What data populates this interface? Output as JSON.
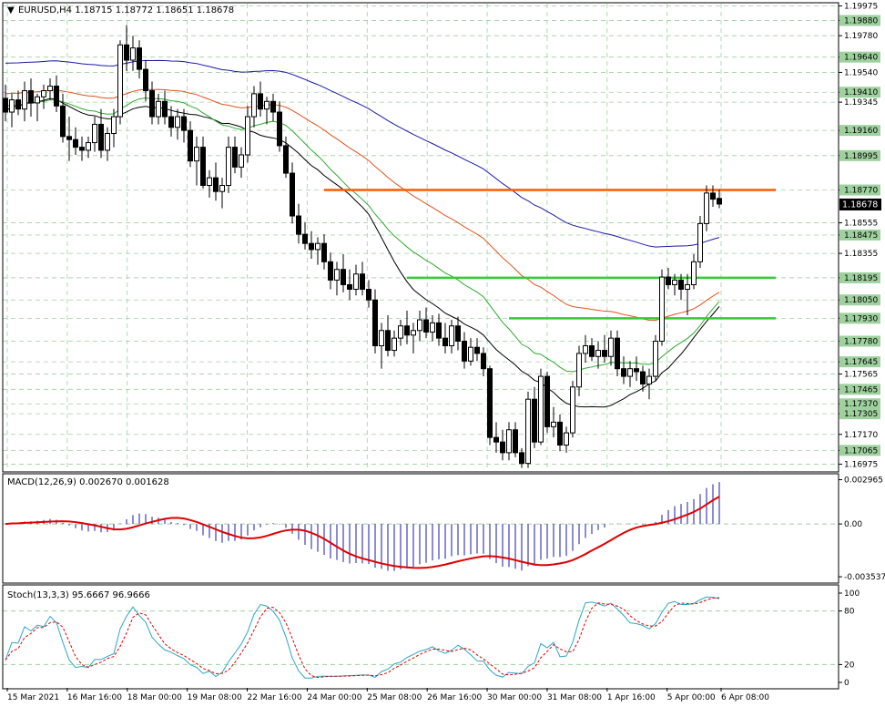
{
  "colors": {
    "background": "#ffffff",
    "grid": "#9fd19f",
    "border": "#000000",
    "text": "#000000",
    "ma_blue": "#1a1aa8",
    "ma_orange": "#e0521c",
    "ma_green": "#2eaa2e",
    "ma_black": "#000000",
    "level_orange": "#ff5a00",
    "level_green": "#33cc33",
    "price_tag_bg": "#000000",
    "price_tag_fg": "#ffffff",
    "macd_hist": "#1a1aa8",
    "macd_signal": "#e00000",
    "stoch_main": "#2aa7c7",
    "stoch_signal": "#e00000"
  },
  "main_panel": {
    "header": "EURUSD,H4  1.18715 1.18772 1.18651 1.18678",
    "current_price": "1.18678",
    "y_range": [
      1.1693,
      1.1999
    ],
    "price_labels": [
      "1.19975",
      "1.19880",
      "1.19780",
      "1.19640",
      "1.19540",
      "1.19410",
      "1.19345",
      "1.19160",
      "1.18995",
      "1.18770",
      "1.18555",
      "1.18475",
      "1.18355",
      "1.18195",
      "1.18050",
      "1.17930",
      "1.17780",
      "1.17645",
      "1.17565",
      "1.17465",
      "1.17370",
      "1.17305",
      "1.17170",
      "1.17065",
      "1.16975"
    ],
    "highlighted_labels": [
      "1.19880",
      "1.19640",
      "1.19410",
      "1.19160",
      "1.18995",
      "1.18770",
      "1.18475",
      "1.18195",
      "1.18050",
      "1.17930",
      "1.17780",
      "1.17645",
      "1.17465",
      "1.17370",
      "1.17305",
      "1.17065"
    ],
    "levels": [
      {
        "price": 1.1877,
        "color": "#ff5a00",
        "from_bar": 50
      },
      {
        "price": 1.18195,
        "color": "#33cc33",
        "from_bar": 63
      },
      {
        "price": 1.1793,
        "color": "#33cc33",
        "from_bar": 79
      }
    ]
  },
  "x_labels": [
    "15 Mar 2021",
    "16 Mar 16:00",
    "18 Mar 00:00",
    "19 Mar 08:00",
    "22 Mar 16:00",
    "24 Mar 00:00",
    "25 Mar 08:00",
    "26 Mar 16:00",
    "30 Mar 00:00",
    "31 Mar 08:00",
    "1 Apr 16:00",
    "5 Apr 00:00",
    "6 Apr 08:00"
  ],
  "macd_panel": {
    "header": "MACD(12,26,9) 0.002670 0.001628",
    "labels": [
      "0.002965",
      "0.00",
      "-0.003537"
    ],
    "y_range": [
      -0.0039,
      0.0033
    ]
  },
  "stoch_panel": {
    "header": "Stoch(13,3,3) 95.6667 96.9666",
    "labels": [
      "100",
      "80",
      "20",
      "0"
    ]
  },
  "chart_data": {
    "type": "candlestick",
    "symbol": "EURUSD",
    "timeframe": "H4",
    "ohlc": [
      [
        1.1937,
        1.1946,
        1.1922,
        1.1928
      ],
      [
        1.1928,
        1.194,
        1.1918,
        1.1936
      ],
      [
        1.1936,
        1.1942,
        1.1926,
        1.193
      ],
      [
        1.193,
        1.1948,
        1.1922,
        1.1942
      ],
      [
        1.1942,
        1.195,
        1.1925,
        1.1934
      ],
      [
        1.1934,
        1.194,
        1.1922,
        1.1938
      ],
      [
        1.1938,
        1.1946,
        1.193,
        1.1942
      ],
      [
        1.1942,
        1.195,
        1.1936,
        1.1945
      ],
      [
        1.1945,
        1.1952,
        1.1928,
        1.1932
      ],
      [
        1.1932,
        1.194,
        1.1908,
        1.1912
      ],
      [
        1.1912,
        1.1925,
        1.1896,
        1.191
      ],
      [
        1.191,
        1.1918,
        1.19,
        1.1905
      ],
      [
        1.1905,
        1.1912,
        1.1896,
        1.1903
      ],
      [
        1.1903,
        1.1912,
        1.1898,
        1.1908
      ],
      [
        1.1908,
        1.1925,
        1.1902,
        1.192
      ],
      [
        1.192,
        1.193,
        1.1898,
        1.1903
      ],
      [
        1.1903,
        1.1918,
        1.1896,
        1.1914
      ],
      [
        1.1914,
        1.193,
        1.1905,
        1.1925
      ],
      [
        1.1925,
        1.1975,
        1.192,
        1.1972
      ],
      [
        1.1972,
        1.1985,
        1.1955,
        1.1962
      ],
      [
        1.1962,
        1.1978,
        1.1955,
        1.197
      ],
      [
        1.197,
        1.1975,
        1.195,
        1.1956
      ],
      [
        1.1956,
        1.1962,
        1.1935,
        1.1942
      ],
      [
        1.1942,
        1.1948,
        1.192,
        1.1925
      ],
      [
        1.1925,
        1.194,
        1.192,
        1.1935
      ],
      [
        1.1935,
        1.1942,
        1.192,
        1.1925
      ],
      [
        1.1925,
        1.1932,
        1.1912,
        1.1918
      ],
      [
        1.1918,
        1.193,
        1.191,
        1.1925
      ],
      [
        1.1925,
        1.193,
        1.1908,
        1.1916
      ],
      [
        1.1916,
        1.1922,
        1.1892,
        1.1896
      ],
      [
        1.1896,
        1.1912,
        1.188,
        1.1905
      ],
      [
        1.1905,
        1.1912,
        1.1878,
        1.188
      ],
      [
        1.188,
        1.189,
        1.1872,
        1.1885
      ],
      [
        1.1885,
        1.1895,
        1.187,
        1.1876
      ],
      [
        1.1876,
        1.1885,
        1.1865,
        1.188
      ],
      [
        1.188,
        1.1912,
        1.1875,
        1.1905
      ],
      [
        1.1905,
        1.1912,
        1.1888,
        1.1892
      ],
      [
        1.1892,
        1.1905,
        1.1885,
        1.19
      ],
      [
        1.19,
        1.1932,
        1.1895,
        1.1925
      ],
      [
        1.1925,
        1.1945,
        1.1918,
        1.194
      ],
      [
        1.194,
        1.1948,
        1.1925,
        1.193
      ],
      [
        1.193,
        1.1938,
        1.192,
        1.1935
      ],
      [
        1.1935,
        1.194,
        1.1922,
        1.1928
      ],
      [
        1.1928,
        1.1935,
        1.1902,
        1.1906
      ],
      [
        1.1906,
        1.1912,
        1.1885,
        1.1888
      ],
      [
        1.1888,
        1.1895,
        1.1855,
        1.186
      ],
      [
        1.186,
        1.1868,
        1.1842,
        1.1848
      ],
      [
        1.1848,
        1.1856,
        1.1838,
        1.1842
      ],
      [
        1.1842,
        1.185,
        1.1832,
        1.1838
      ],
      [
        1.1838,
        1.1846,
        1.1828,
        1.1842
      ],
      [
        1.1842,
        1.1848,
        1.1825,
        1.183
      ],
      [
        1.183,
        1.1836,
        1.1812,
        1.1818
      ],
      [
        1.1818,
        1.183,
        1.1808,
        1.1825
      ],
      [
        1.1825,
        1.1835,
        1.181,
        1.1815
      ],
      [
        1.1815,
        1.1825,
        1.1805,
        1.1812
      ],
      [
        1.1812,
        1.1828,
        1.1808,
        1.1822
      ],
      [
        1.1822,
        1.183,
        1.1808,
        1.1812
      ],
      [
        1.1812,
        1.1818,
        1.18,
        1.1805
      ],
      [
        1.1805,
        1.1812,
        1.177,
        1.1775
      ],
      [
        1.1775,
        1.179,
        1.176,
        1.1785
      ],
      [
        1.1785,
        1.1795,
        1.1768,
        1.1772
      ],
      [
        1.1772,
        1.1785,
        1.1768,
        1.178
      ],
      [
        1.178,
        1.1792,
        1.1775,
        1.1788
      ],
      [
        1.1788,
        1.1798,
        1.1776,
        1.1782
      ],
      [
        1.1782,
        1.179,
        1.177,
        1.1785
      ],
      [
        1.1785,
        1.1798,
        1.1778,
        1.1792
      ],
      [
        1.1792,
        1.18,
        1.178,
        1.1784
      ],
      [
        1.1784,
        1.1795,
        1.1778,
        1.179
      ],
      [
        1.179,
        1.1796,
        1.1775,
        1.178
      ],
      [
        1.178,
        1.179,
        1.177,
        1.1775
      ],
      [
        1.1775,
        1.1792,
        1.177,
        1.1788
      ],
      [
        1.1788,
        1.1794,
        1.1772,
        1.1778
      ],
      [
        1.1778,
        1.1784,
        1.176,
        1.1765
      ],
      [
        1.1765,
        1.178,
        1.1762,
        1.1774
      ],
      [
        1.1774,
        1.178,
        1.1765,
        1.177
      ],
      [
        1.177,
        1.1774,
        1.1755,
        1.176
      ],
      [
        1.176,
        1.1762,
        1.171,
        1.1715
      ],
      [
        1.1715,
        1.1725,
        1.1705,
        1.1712
      ],
      [
        1.1712,
        1.172,
        1.17,
        1.1705
      ],
      [
        1.1705,
        1.1725,
        1.17,
        1.172
      ],
      [
        1.172,
        1.1725,
        1.1702,
        1.1705
      ],
      [
        1.1705,
        1.1708,
        1.1695,
        1.1698
      ],
      [
        1.1698,
        1.1745,
        1.1695,
        1.174
      ],
      [
        1.174,
        1.1748,
        1.1708,
        1.1712
      ],
      [
        1.1712,
        1.176,
        1.171,
        1.1755
      ],
      [
        1.1755,
        1.1758,
        1.1718,
        1.1722
      ],
      [
        1.1722,
        1.1735,
        1.1715,
        1.1725
      ],
      [
        1.1725,
        1.173,
        1.1706,
        1.171
      ],
      [
        1.171,
        1.1722,
        1.1705,
        1.1718
      ],
      [
        1.1718,
        1.1752,
        1.1715,
        1.1748
      ],
      [
        1.1748,
        1.1775,
        1.1742,
        1.177
      ],
      [
        1.177,
        1.1782,
        1.1764,
        1.1775
      ],
      [
        1.1775,
        1.178,
        1.1765,
        1.1768
      ],
      [
        1.1768,
        1.1778,
        1.176,
        1.1772
      ],
      [
        1.1772,
        1.1782,
        1.1764,
        1.1768
      ],
      [
        1.1768,
        1.1785,
        1.1762,
        1.178
      ],
      [
        1.178,
        1.1785,
        1.1755,
        1.176
      ],
      [
        1.176,
        1.1768,
        1.175,
        1.1755
      ],
      [
        1.1755,
        1.1765,
        1.1748,
        1.176
      ],
      [
        1.176,
        1.1768,
        1.1752,
        1.1758
      ],
      [
        1.1758,
        1.1762,
        1.1745,
        1.175
      ],
      [
        1.175,
        1.176,
        1.174,
        1.1755
      ],
      [
        1.1755,
        1.1782,
        1.1752,
        1.1778
      ],
      [
        1.1778,
        1.1825,
        1.1775,
        1.182
      ],
      [
        1.182,
        1.1826,
        1.1812,
        1.1815
      ],
      [
        1.1815,
        1.1822,
        1.1808,
        1.1818
      ],
      [
        1.1818,
        1.1822,
        1.1805,
        1.1812
      ],
      [
        1.1812,
        1.1822,
        1.1795,
        1.1815
      ],
      [
        1.1815,
        1.1835,
        1.1812,
        1.183
      ],
      [
        1.183,
        1.186,
        1.1826,
        1.1855
      ],
      [
        1.1855,
        1.188,
        1.185,
        1.1875
      ],
      [
        1.1875,
        1.188,
        1.1866,
        1.1871
      ],
      [
        1.18715,
        1.18772,
        1.18651,
        1.18678
      ]
    ],
    "macd_last": [
      0.00267,
      0.001628
    ],
    "stoch_last": [
      95.6667,
      96.9666
    ]
  }
}
